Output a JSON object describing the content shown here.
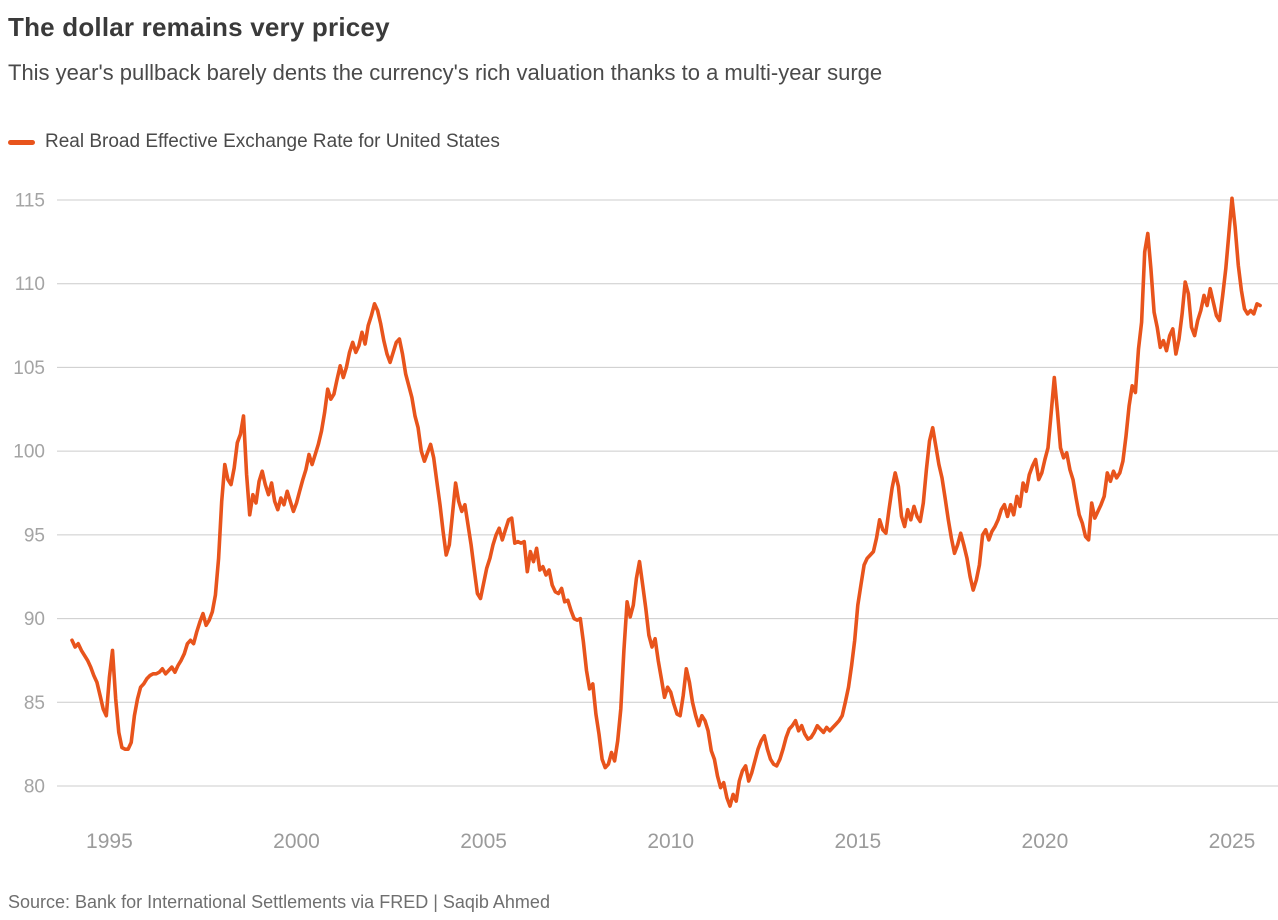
{
  "header": {
    "title": "The dollar remains very pricey",
    "subtitle": "This year's pullback barely dents the currency's rich valuation thanks to a multi-year surge"
  },
  "legend": {
    "series": [
      {
        "label": "Real Broad Effective Exchange Rate for United States",
        "color": "#E8541C"
      }
    ],
    "position": "top-left"
  },
  "footer": {
    "source": "Source: Bank for International Settlements via FRED | Saqib Ahmed"
  },
  "colors": {
    "accent_line": "#E8541C",
    "gridline": "#cccccc",
    "tick_label": "#9b9b9b",
    "title_text": "#3a3a3a",
    "subtitle_text": "#4a4a4a",
    "source_text": "#6f6f6f"
  },
  "chart_data": {
    "type": "line",
    "title": "Real Broad Effective Exchange Rate for United States",
    "xlabel": "",
    "ylabel": "",
    "frequency": "monthly",
    "x_start_year": 1994,
    "x_start_month": 1,
    "x_end_label": "Oct 2025",
    "x_ticks": [
      1995,
      2000,
      2005,
      2010,
      2015,
      2020,
      2025
    ],
    "y_ticks": [
      80,
      85,
      90,
      95,
      100,
      105,
      110,
      115
    ],
    "ylim": [
      78,
      116.5
    ],
    "grid": "horizontal-only",
    "legend_position": "top-left",
    "series": [
      {
        "name": "Real Broad Effective Exchange Rate for United States",
        "color": "#E8541C",
        "values": [
          88.7,
          88.3,
          88.5,
          88.1,
          87.8,
          87.5,
          87.1,
          86.6,
          86.2,
          85.4,
          84.6,
          84.2,
          86.5,
          88.1,
          85.2,
          83.2,
          82.3,
          82.2,
          82.2,
          82.6,
          84.2,
          85.2,
          85.9,
          86.1,
          86.4,
          86.6,
          86.7,
          86.7,
          86.8,
          87.0,
          86.7,
          86.9,
          87.1,
          86.8,
          87.2,
          87.5,
          87.9,
          88.5,
          88.7,
          88.5,
          89.2,
          89.8,
          90.3,
          89.6,
          89.9,
          90.4,
          91.4,
          93.6,
          97.0,
          99.2,
          98.3,
          98.0,
          99.0,
          100.5,
          101.0,
          102.1,
          98.6,
          96.2,
          97.4,
          96.9,
          98.2,
          98.8,
          98.0,
          97.4,
          98.1,
          97.0,
          96.5,
          97.2,
          96.8,
          97.6,
          97.0,
          96.4,
          96.9,
          97.6,
          98.3,
          98.9,
          99.8,
          99.2,
          99.8,
          100.4,
          101.2,
          102.3,
          103.7,
          103.1,
          103.4,
          104.3,
          105.1,
          104.4,
          105.0,
          105.9,
          106.5,
          105.9,
          106.3,
          107.1,
          106.4,
          107.5,
          108.1,
          108.8,
          108.4,
          107.6,
          106.6,
          105.8,
          105.3,
          105.9,
          106.5,
          106.7,
          105.8,
          104.6,
          103.9,
          103.2,
          102.1,
          101.4,
          100.0,
          99.4,
          99.9,
          100.4,
          99.6,
          98.2,
          96.8,
          95.2,
          93.8,
          94.4,
          96.2,
          98.1,
          97.0,
          96.4,
          96.8,
          95.6,
          94.4,
          92.9,
          91.5,
          91.2,
          92.1,
          93.0,
          93.6,
          94.4,
          95.0,
          95.4,
          94.7,
          95.3,
          95.9,
          96.0,
          94.5,
          94.6,
          94.5,
          94.6,
          92.8,
          94.0,
          93.4,
          94.2,
          92.9,
          93.1,
          92.6,
          92.9,
          92.0,
          91.6,
          91.5,
          91.8,
          91.0,
          91.1,
          90.5,
          90.0,
          89.9,
          90.0,
          88.6,
          86.9,
          85.8,
          86.1,
          84.3,
          83.1,
          81.6,
          81.1,
          81.3,
          82.0,
          81.5,
          82.7,
          84.6,
          88.1,
          91.0,
          90.1,
          90.8,
          92.4,
          93.4,
          92.0,
          90.6,
          89.0,
          88.3,
          88.8,
          87.5,
          86.4,
          85.3,
          85.9,
          85.6,
          84.9,
          84.3,
          84.2,
          85.4,
          87.0,
          86.2,
          85.0,
          84.2,
          83.6,
          84.2,
          83.9,
          83.3,
          82.1,
          81.6,
          80.6,
          79.9,
          80.2,
          79.3,
          78.8,
          79.5,
          79.1,
          80.3,
          80.9,
          81.2,
          80.3,
          80.8,
          81.5,
          82.2,
          82.7,
          83.0,
          82.2,
          81.6,
          81.3,
          81.2,
          81.6,
          82.2,
          82.9,
          83.4,
          83.6,
          83.9,
          83.3,
          83.6,
          83.1,
          82.8,
          82.9,
          83.2,
          83.6,
          83.4,
          83.2,
          83.5,
          83.3,
          83.5,
          83.7,
          83.9,
          84.2,
          85.0,
          85.9,
          87.2,
          88.7,
          90.8,
          92.0,
          93.2,
          93.6,
          93.8,
          94.0,
          94.8,
          95.9,
          95.3,
          95.1,
          96.5,
          97.8,
          98.7,
          97.9,
          96.1,
          95.5,
          96.5,
          95.9,
          96.7,
          96.1,
          95.8,
          96.9,
          98.9,
          100.6,
          101.4,
          100.3,
          99.2,
          98.4,
          97.2,
          95.9,
          94.8,
          93.9,
          94.4,
          95.1,
          94.4,
          93.6,
          92.5,
          91.7,
          92.3,
          93.2,
          95.0,
          95.3,
          94.7,
          95.2,
          95.5,
          95.9,
          96.5,
          96.8,
          96.1,
          96.8,
          96.2,
          97.3,
          96.7,
          98.1,
          97.6,
          98.6,
          99.1,
          99.5,
          98.3,
          98.7,
          99.5,
          100.2,
          102.3,
          104.4,
          102.4,
          100.2,
          99.6,
          99.9,
          98.9,
          98.3,
          97.2,
          96.2,
          95.7,
          94.9,
          94.7,
          96.9,
          96.0,
          96.4,
          96.8,
          97.3,
          98.7,
          98.2,
          98.8,
          98.4,
          98.7,
          99.4,
          100.9,
          102.7,
          103.9,
          103.5,
          106.1,
          107.7,
          111.9,
          113.0,
          110.9,
          108.3,
          107.4,
          106.2,
          106.6,
          106.0,
          106.9,
          107.3,
          105.8,
          106.7,
          108.2,
          110.1,
          109.4,
          107.4,
          106.9,
          107.8,
          108.4,
          109.3,
          108.7,
          109.7,
          108.9,
          108.1,
          107.8,
          109.3,
          110.9,
          113.0,
          115.1,
          113.4,
          111.1,
          109.6,
          108.5,
          108.2,
          108.4,
          108.2,
          108.8,
          108.7
        ]
      }
    ]
  }
}
